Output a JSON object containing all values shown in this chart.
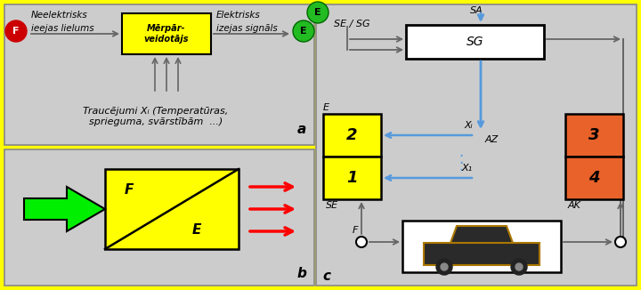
{
  "bg_color": "#FFFF00",
  "panel_bg": "#CCCCCC",
  "box_yellow": "#FFFF00",
  "box_orange": "#E8622A",
  "arrow_blue": "#5599DD",
  "arrow_gray": "#666666",
  "text_color": "#000000",
  "panel_a": {
    "meerpaar_text": "Mērpār-\nveidotājs",
    "text_left1": "Neelektrisks",
    "text_left2": "ieejas lielums",
    "text_right1": "Elektrisks",
    "text_right2": "izejas signāls",
    "text_bottom": "Traucējumi Xᵢ (Temperatūras,\nsprieguma, svārstībām  ...)",
    "label_a": "a"
  },
  "panel_b": {
    "label_b": "b",
    "label_F": "F",
    "label_E": "E"
  },
  "panel_c": {
    "label_c": "c",
    "label_SE_SG": "SE / SG",
    "label_SA": "SA",
    "label_SG": "SG",
    "label_E": "E",
    "label_AZ": "AZ",
    "label_Xi": "Xᵢ",
    "label_X1": "X₁",
    "label_SE": "SE",
    "label_AK": "AK",
    "label_F": "F",
    "num_2": "2",
    "num_1": "1",
    "num_3": "3",
    "num_4": "4"
  }
}
